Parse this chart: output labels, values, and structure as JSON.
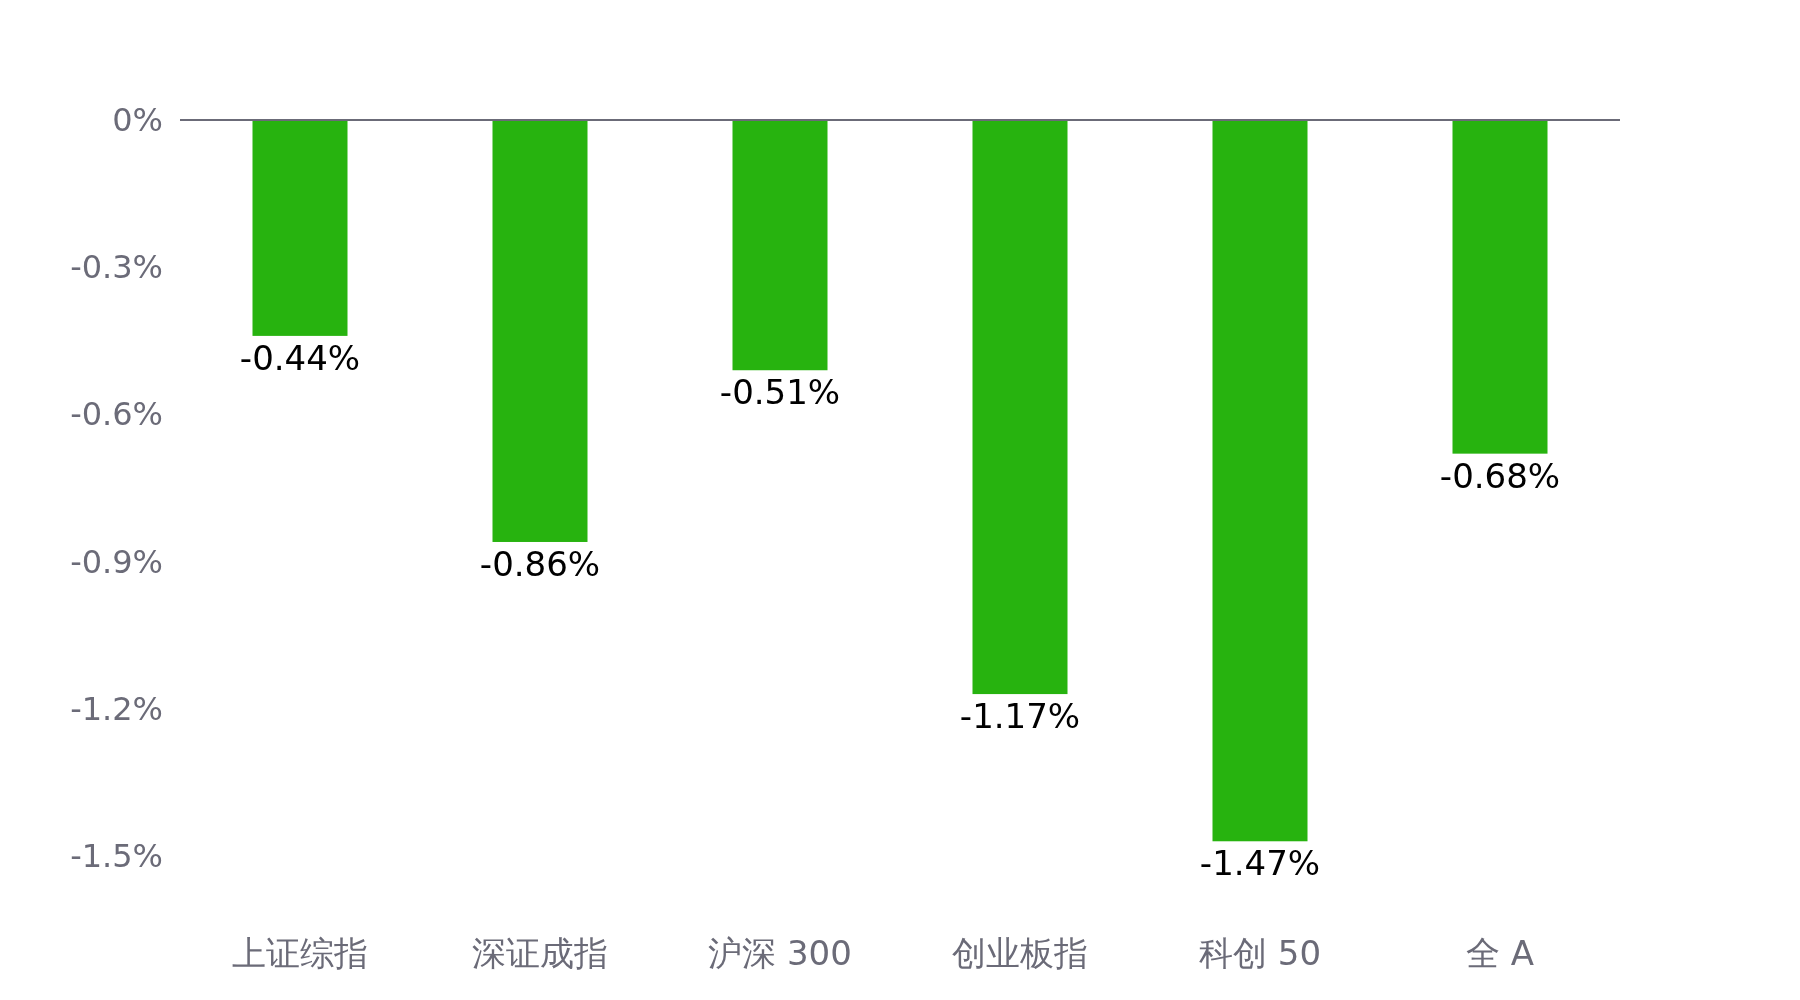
{
  "chart_data": {
    "type": "bar",
    "categories": [
      "上证综指",
      "深证成指",
      "沪深 300",
      "创业板指",
      "科创 50",
      "全 A"
    ],
    "values": [
      -0.44,
      -0.86,
      -0.51,
      -1.17,
      -1.47,
      -0.68
    ],
    "value_labels": [
      "-0.44%",
      "-0.86%",
      "-0.51%",
      "-1.17%",
      "-1.47%",
      "-0.68%"
    ],
    "color": "#27b30f",
    "ylim": [
      -1.5,
      0
    ],
    "yticks": [
      {
        "value": 0,
        "label": "0%"
      },
      {
        "value": -0.3,
        "label": "-0.3%"
      },
      {
        "value": -0.6,
        "label": "-0.6%"
      },
      {
        "value": -0.9,
        "label": "-0.9%"
      },
      {
        "value": -1.2,
        "label": "-1.2%"
      },
      {
        "value": -1.5,
        "label": "-1.5%"
      }
    ],
    "grid": false
  }
}
